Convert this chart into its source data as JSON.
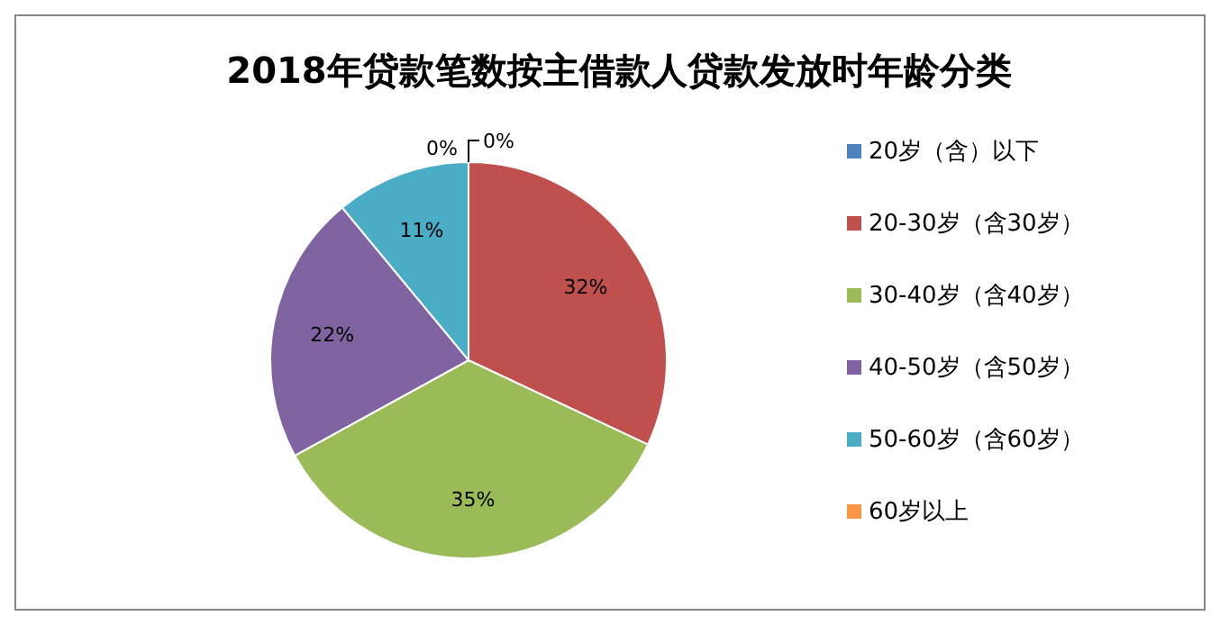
{
  "chart_data": {
    "type": "pie",
    "title": "2018年贷款笔数按主借款人贷款发放时年龄分类",
    "categories": [
      "20岁（含）以下",
      "20-30岁（含30岁）",
      "30-40岁（含40岁）",
      "40-50岁（含50岁）",
      "50-60岁（含60岁）",
      "60岁以上"
    ],
    "values": [
      0,
      32,
      35,
      22,
      11,
      0
    ],
    "colors": [
      "#4f81bd",
      "#c0504d",
      "#9bbb59",
      "#8064a2",
      "#4bacc6",
      "#f79646"
    ],
    "value_labels": [
      "0%",
      "32%",
      "35%",
      "22%",
      "11%",
      "0%"
    ],
    "legend": "right"
  }
}
